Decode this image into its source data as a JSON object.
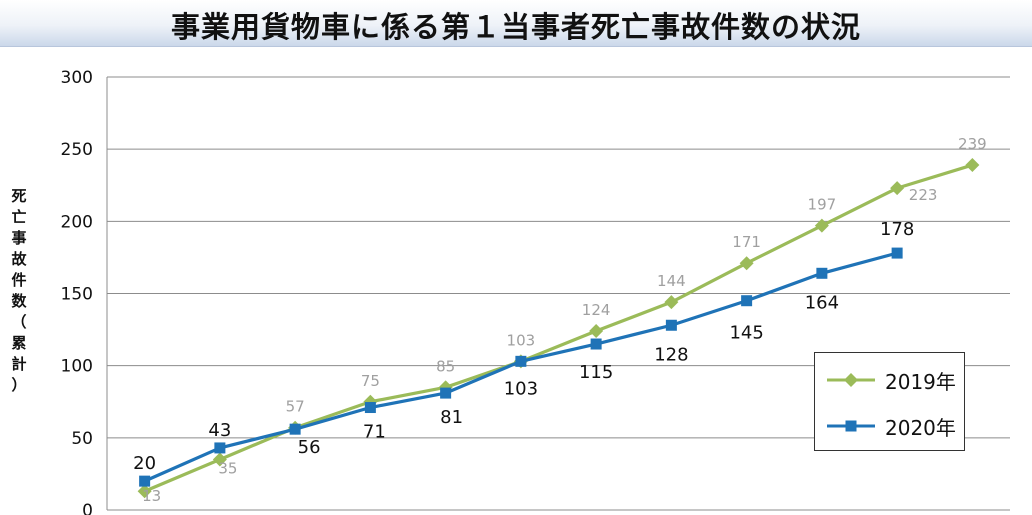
{
  "title": "事業用貨物車に係る第１当事者死亡事故件数の状況",
  "ylabel": "死亡事故件数（累計）",
  "chart_data": {
    "type": "line",
    "title": "事業用貨物車に係る第１当事者死亡事故件数の状況",
    "xlabel": "",
    "ylabel": "死亡事故件数（累計）",
    "ylim": [
      0,
      300
    ],
    "yticks": [
      0,
      50,
      100,
      150,
      200,
      250,
      300
    ],
    "grid": true,
    "legend_position": "bottom-right",
    "series": [
      {
        "name": "2019年",
        "color": "#9bbb59",
        "marker": "diamond",
        "values": [
          13,
          35,
          57,
          75,
          85,
          103,
          124,
          144,
          171,
          197,
          223,
          239
        ]
      },
      {
        "name": "2020年",
        "color": "#1f73b7",
        "marker": "square",
        "values": [
          20,
          43,
          56,
          71,
          81,
          103,
          115,
          128,
          145,
          164,
          178
        ]
      }
    ]
  }
}
